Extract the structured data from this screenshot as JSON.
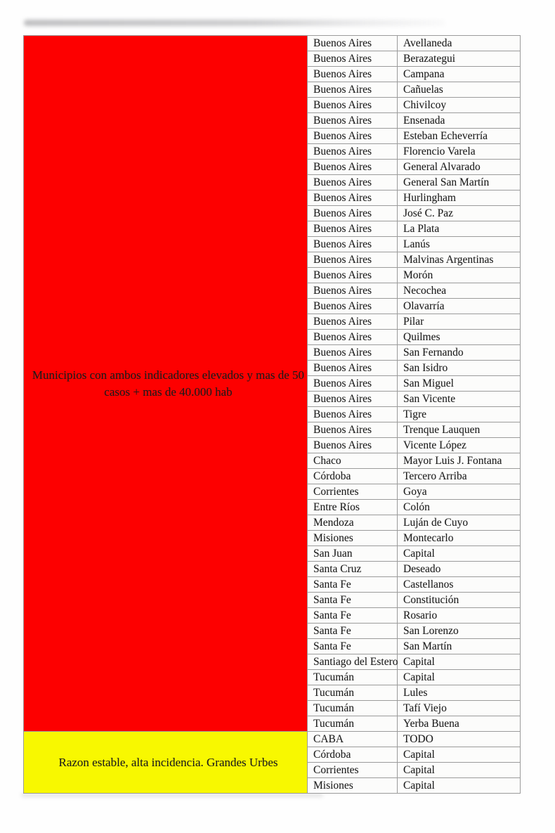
{
  "colors": {
    "red_block": "#fd0000",
    "yellow_block": "#f8f800",
    "cell_border": "#9b9b9b"
  },
  "table": {
    "groups": [
      {
        "id": "red",
        "color": "#fd0000",
        "label_lines": [
          "Municipios con ambos indicadores elevados y mas de 50",
          "casos + mas de 40.000 hab"
        ],
        "rows": [
          {
            "province": "Buenos Aires",
            "municipality": "Avellaneda"
          },
          {
            "province": "Buenos Aires",
            "municipality": "Berazategui"
          },
          {
            "province": "Buenos Aires",
            "municipality": "Campana"
          },
          {
            "province": "Buenos Aires",
            "municipality": "Cañuelas"
          },
          {
            "province": "Buenos Aires",
            "municipality": "Chivilcoy"
          },
          {
            "province": "Buenos Aires",
            "municipality": "Ensenada"
          },
          {
            "province": "Buenos Aires",
            "municipality": "Esteban Echeverría"
          },
          {
            "province": "Buenos Aires",
            "municipality": "Florencio Varela"
          },
          {
            "province": "Buenos Aires",
            "municipality": "General Alvarado"
          },
          {
            "province": "Buenos Aires",
            "municipality": "General San Martín"
          },
          {
            "province": "Buenos Aires",
            "municipality": "Hurlingham"
          },
          {
            "province": "Buenos Aires",
            "municipality": "José C. Paz"
          },
          {
            "province": "Buenos Aires",
            "municipality": "La Plata"
          },
          {
            "province": "Buenos Aires",
            "municipality": "Lanús"
          },
          {
            "province": "Buenos Aires",
            "municipality": "Malvinas Argentinas"
          },
          {
            "province": "Buenos Aires",
            "municipality": "Morón"
          },
          {
            "province": "Buenos Aires",
            "municipality": "Necochea"
          },
          {
            "province": "Buenos Aires",
            "municipality": "Olavarría"
          },
          {
            "province": "Buenos Aires",
            "municipality": "Pilar"
          },
          {
            "province": "Buenos Aires",
            "municipality": "Quilmes"
          },
          {
            "province": "Buenos Aires",
            "municipality": "San Fernando"
          },
          {
            "province": "Buenos Aires",
            "municipality": "San Isidro"
          },
          {
            "province": "Buenos Aires",
            "municipality": "San Miguel"
          },
          {
            "province": "Buenos Aires",
            "municipality": "San Vicente"
          },
          {
            "province": "Buenos Aires",
            "municipality": "Tigre"
          },
          {
            "province": "Buenos Aires",
            "municipality": "Trenque Lauquen"
          },
          {
            "province": "Buenos Aires",
            "municipality": "Vicente López"
          },
          {
            "province": "Chaco",
            "municipality": "Mayor Luis J. Fontana"
          },
          {
            "province": "Córdoba",
            "municipality": "Tercero Arriba"
          },
          {
            "province": "Corrientes",
            "municipality": "Goya"
          },
          {
            "province": "Entre Ríos",
            "municipality": "Colón"
          },
          {
            "province": "Mendoza",
            "municipality": "Luján de Cuyo"
          },
          {
            "province": "Misiones",
            "municipality": "Montecarlo"
          },
          {
            "province": "San Juan",
            "municipality": "Capital"
          },
          {
            "province": "Santa Cruz",
            "municipality": "Deseado"
          },
          {
            "province": "Santa Fe",
            "municipality": "Castellanos"
          },
          {
            "province": "Santa Fe",
            "municipality": "Constitución"
          },
          {
            "province": "Santa Fe",
            "municipality": "Rosario"
          },
          {
            "province": "Santa Fe",
            "municipality": "San Lorenzo"
          },
          {
            "province": "Santa Fe",
            "municipality": "San Martín"
          },
          {
            "province": "Santiago del Estero",
            "municipality": "Capital"
          },
          {
            "province": "Tucumán",
            "municipality": "Capital"
          },
          {
            "province": "Tucumán",
            "municipality": "Lules"
          },
          {
            "province": "Tucumán",
            "municipality": "Tafí Viejo"
          },
          {
            "province": "Tucumán",
            "municipality": "Yerba Buena"
          }
        ]
      },
      {
        "id": "yellow",
        "color": "#f8f800",
        "label_lines": [
          "Razon estable, alta incidencia. Grandes Urbes"
        ],
        "rows": [
          {
            "province": "CABA",
            "municipality": "TODO"
          },
          {
            "province": "Córdoba",
            "municipality": "Capital"
          },
          {
            "province": "Corrientes",
            "municipality": "Capital"
          },
          {
            "province": "Misiones",
            "municipality": "Capital"
          }
        ]
      }
    ]
  }
}
